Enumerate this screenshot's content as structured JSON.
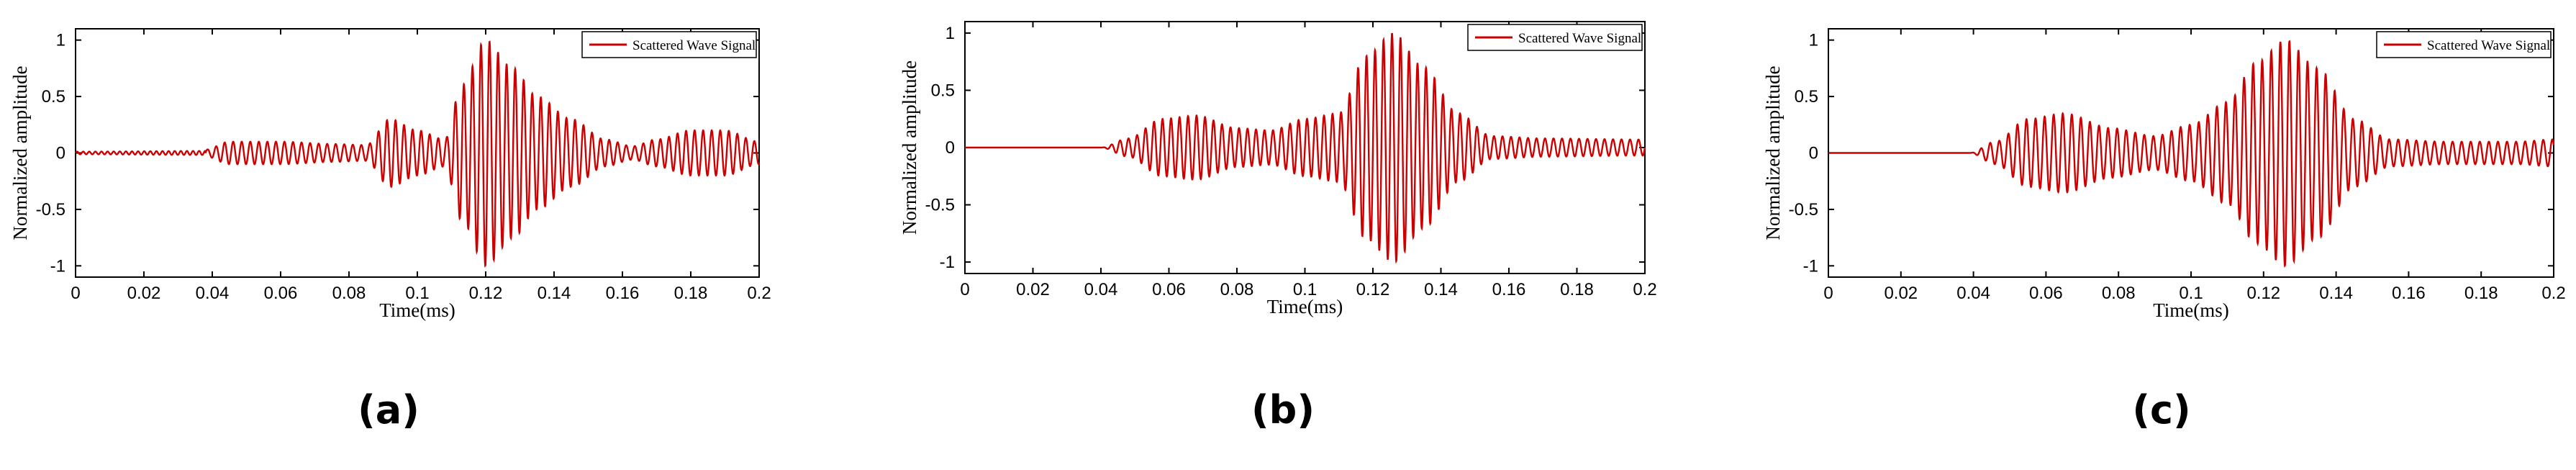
{
  "colors": {
    "signal": "#cc0000",
    "axis": "#000000",
    "background": "#ffffff"
  },
  "chart_data": [
    {
      "type": "line",
      "panel_label": "(a)",
      "xlabel": "Time(ms)",
      "ylabel": "Normalized amplitude",
      "xlim": [
        0,
        0.2
      ],
      "ylim": [
        -1.1,
        1.1
      ],
      "xticks": [
        "0",
        "0.02",
        "0.04",
        "0.06",
        "0.08",
        "0.1",
        "0.12",
        "0.14",
        "0.16",
        "0.18",
        "0.2"
      ],
      "yticks": [
        "1",
        "0.5",
        "0",
        "-0.5",
        "-1"
      ],
      "grid": false,
      "legend_position": "top-right",
      "series": [
        {
          "name": "Scattered Wave Signal",
          "color": "#cc0000"
        }
      ],
      "signal_description": {
        "onset": 0.038,
        "carrier_cycles_per_ms": 400,
        "envelope_knots": [
          [
            0,
            0.02
          ],
          [
            0.038,
            0.03
          ],
          [
            0.045,
            0.1
          ],
          [
            0.06,
            0.1
          ],
          [
            0.075,
            0.08
          ],
          [
            0.085,
            0.07
          ],
          [
            0.092,
            0.3
          ],
          [
            0.1,
            0.2
          ],
          [
            0.108,
            0.12
          ],
          [
            0.113,
            0.6
          ],
          [
            0.12,
            1.0
          ],
          [
            0.128,
            0.75
          ],
          [
            0.135,
            0.5
          ],
          [
            0.145,
            0.3
          ],
          [
            0.155,
            0.12
          ],
          [
            0.163,
            0.06
          ],
          [
            0.17,
            0.12
          ],
          [
            0.18,
            0.2
          ],
          [
            0.19,
            0.2
          ],
          [
            0.2,
            0.1
          ]
        ]
      }
    },
    {
      "type": "line",
      "panel_label": "(b)",
      "xlabel": "Time(ms)",
      "ylabel": "Normalized amplitude",
      "xlim": [
        0,
        0.2
      ],
      "ylim": [
        -1.1,
        1.1
      ],
      "xticks": [
        "0",
        "0.02",
        "0.04",
        "0.06",
        "0.08",
        "0.1",
        "0.12",
        "0.14",
        "0.16",
        "0.18",
        "0.2"
      ],
      "yticks": [
        "1",
        "0.5",
        "0",
        "-0.5",
        "-1"
      ],
      "grid": false,
      "legend_position": "top-right",
      "series": [
        {
          "name": "Scattered Wave Signal",
          "color": "#cc0000"
        }
      ],
      "signal_description": {
        "onset": 0.04,
        "carrier_cycles_per_ms": 400,
        "envelope_knots": [
          [
            0,
            0
          ],
          [
            0.04,
            0
          ],
          [
            0.048,
            0.08
          ],
          [
            0.058,
            0.25
          ],
          [
            0.068,
            0.28
          ],
          [
            0.08,
            0.17
          ],
          [
            0.09,
            0.15
          ],
          [
            0.1,
            0.25
          ],
          [
            0.11,
            0.3
          ],
          [
            0.118,
            0.8
          ],
          [
            0.126,
            1.0
          ],
          [
            0.135,
            0.7
          ],
          [
            0.145,
            0.3
          ],
          [
            0.155,
            0.1
          ],
          [
            0.17,
            0.08
          ],
          [
            0.2,
            0.07
          ]
        ]
      }
    },
    {
      "type": "line",
      "panel_label": "(c)",
      "xlabel": "Time(ms)",
      "ylabel": "Normalized amplitude",
      "xlim": [
        0,
        0.2
      ],
      "ylim": [
        -1.1,
        1.1
      ],
      "xticks": [
        "0",
        "0.02",
        "0.04",
        "0.06",
        "0.08",
        "0.1",
        "0.12",
        "0.14",
        "0.16",
        "0.18",
        "0.2"
      ],
      "yticks": [
        "1",
        "0.5",
        "0",
        "-0.5",
        "-1"
      ],
      "grid": false,
      "legend_position": "top-right",
      "series": [
        {
          "name": "Scattered Wave Signal",
          "color": "#cc0000"
        }
      ],
      "signal_description": {
        "onset": 0.039,
        "carrier_cycles_per_ms": 400,
        "envelope_knots": [
          [
            0,
            0
          ],
          [
            0.039,
            0
          ],
          [
            0.046,
            0.1
          ],
          [
            0.055,
            0.3
          ],
          [
            0.065,
            0.35
          ],
          [
            0.078,
            0.22
          ],
          [
            0.09,
            0.15
          ],
          [
            0.1,
            0.25
          ],
          [
            0.11,
            0.45
          ],
          [
            0.118,
            0.8
          ],
          [
            0.126,
            1.0
          ],
          [
            0.135,
            0.75
          ],
          [
            0.145,
            0.3
          ],
          [
            0.155,
            0.12
          ],
          [
            0.17,
            0.1
          ],
          [
            0.19,
            0.1
          ],
          [
            0.2,
            0.12
          ]
        ]
      }
    }
  ]
}
